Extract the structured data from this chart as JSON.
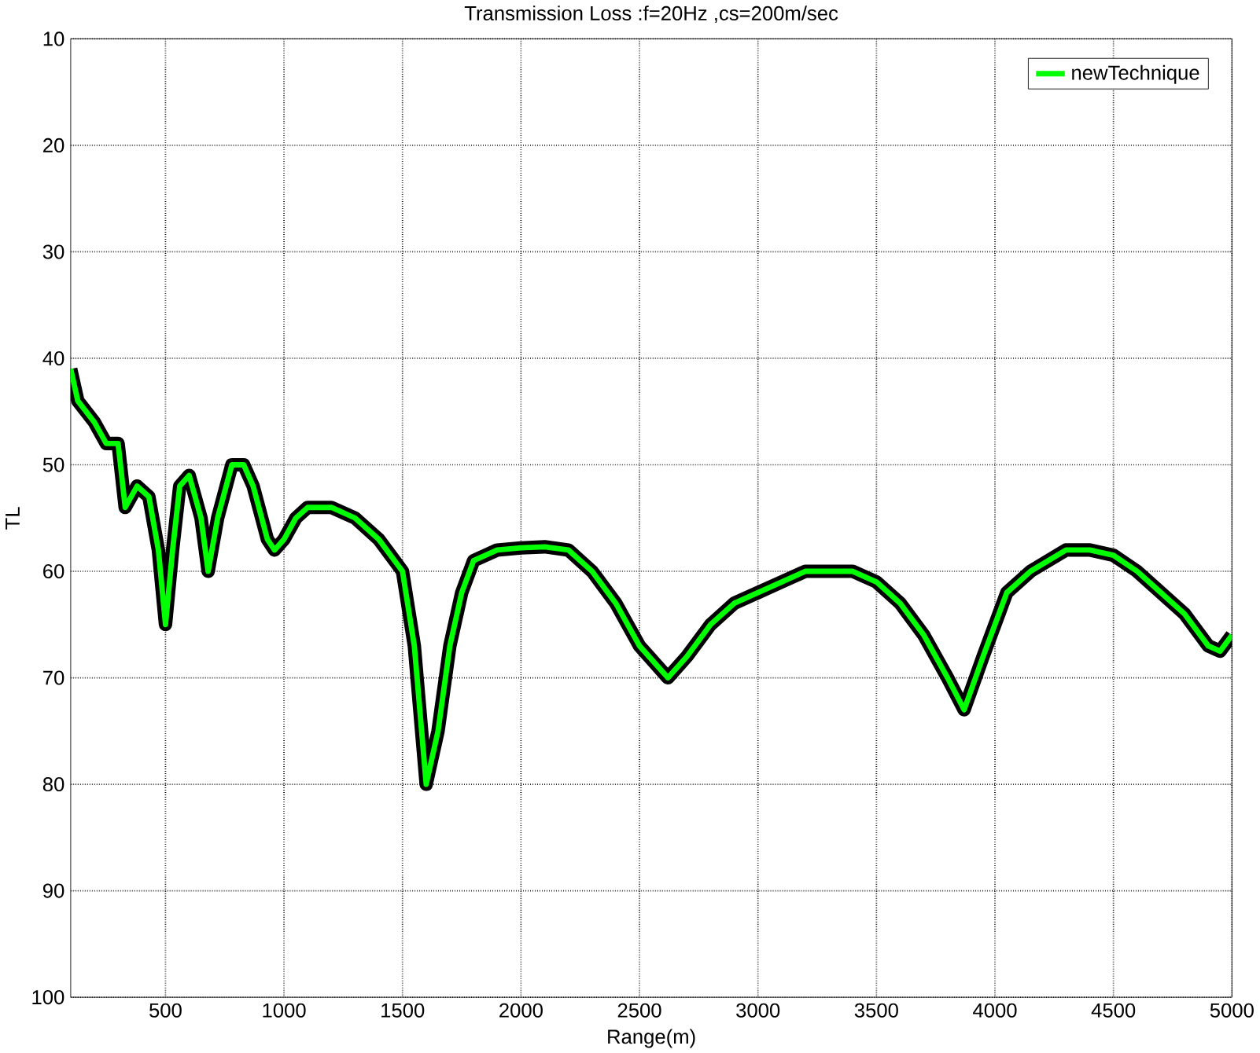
{
  "chart_data": {
    "type": "line",
    "title": "Transmission Loss :f=20Hz ,cs=200m/sec",
    "xlabel": "Range(m)",
    "ylabel": "TL",
    "x": [
      100,
      130,
      200,
      250,
      300,
      330,
      380,
      430,
      470,
      500,
      530,
      560,
      600,
      650,
      680,
      720,
      780,
      830,
      870,
      930,
      960,
      1000,
      1050,
      1100,
      1200,
      1300,
      1400,
      1500,
      1550,
      1600,
      1650,
      1700,
      1750,
      1800,
      1900,
      2000,
      2100,
      2200,
      2300,
      2400,
      2500,
      2620,
      2700,
      2800,
      2900,
      3000,
      3100,
      3200,
      3300,
      3400,
      3500,
      3600,
      3700,
      3800,
      3870,
      3950,
      4050,
      4150,
      4300,
      4400,
      4500,
      4600,
      4700,
      4800,
      4900,
      4950,
      5000
    ],
    "series": [
      {
        "color": "#000000",
        "values": [
          41,
          44,
          46,
          48,
          48,
          54,
          52,
          53,
          58,
          65,
          58,
          52,
          51,
          55,
          60,
          55,
          50,
          50,
          52,
          57,
          58,
          57,
          55,
          54,
          54,
          55,
          57,
          60,
          67,
          80,
          75,
          67,
          62,
          59,
          58,
          57.8,
          57.7,
          58,
          60,
          63,
          67,
          70,
          68,
          65,
          63,
          62,
          61,
          60,
          60,
          60,
          61,
          63,
          66,
          70,
          73,
          68,
          62,
          60,
          58,
          58,
          58.5,
          60,
          62,
          64,
          67,
          67.5,
          66
        ]
      },
      {
        "name": "newTechnique",
        "color": "#00ff00",
        "values": [
          41,
          44,
          46,
          48,
          48,
          54,
          52,
          53,
          58,
          65,
          58,
          52,
          51,
          55,
          60,
          55,
          50,
          50,
          52,
          57,
          58,
          57,
          55,
          54,
          54,
          55,
          57,
          60,
          67,
          80,
          75,
          67,
          62,
          59,
          58,
          57.8,
          57.7,
          58,
          60,
          63,
          67,
          70,
          68,
          65,
          63,
          62,
          61,
          60,
          60,
          60,
          61,
          63,
          66,
          70,
          73,
          68,
          62,
          60,
          58,
          58,
          58.5,
          60,
          62,
          64,
          67,
          67.5,
          66
        ]
      }
    ],
    "xlim": [
      100,
      5000
    ],
    "ylim": [
      100,
      10
    ],
    "xticks": [
      500,
      1000,
      1500,
      2000,
      2500,
      3000,
      3500,
      4000,
      4500,
      5000
    ],
    "yticks": [
      10,
      20,
      30,
      40,
      50,
      60,
      70,
      80,
      90,
      100
    ],
    "grid": true,
    "legend": "top right",
    "line_style": "solid",
    "marker": "none"
  }
}
